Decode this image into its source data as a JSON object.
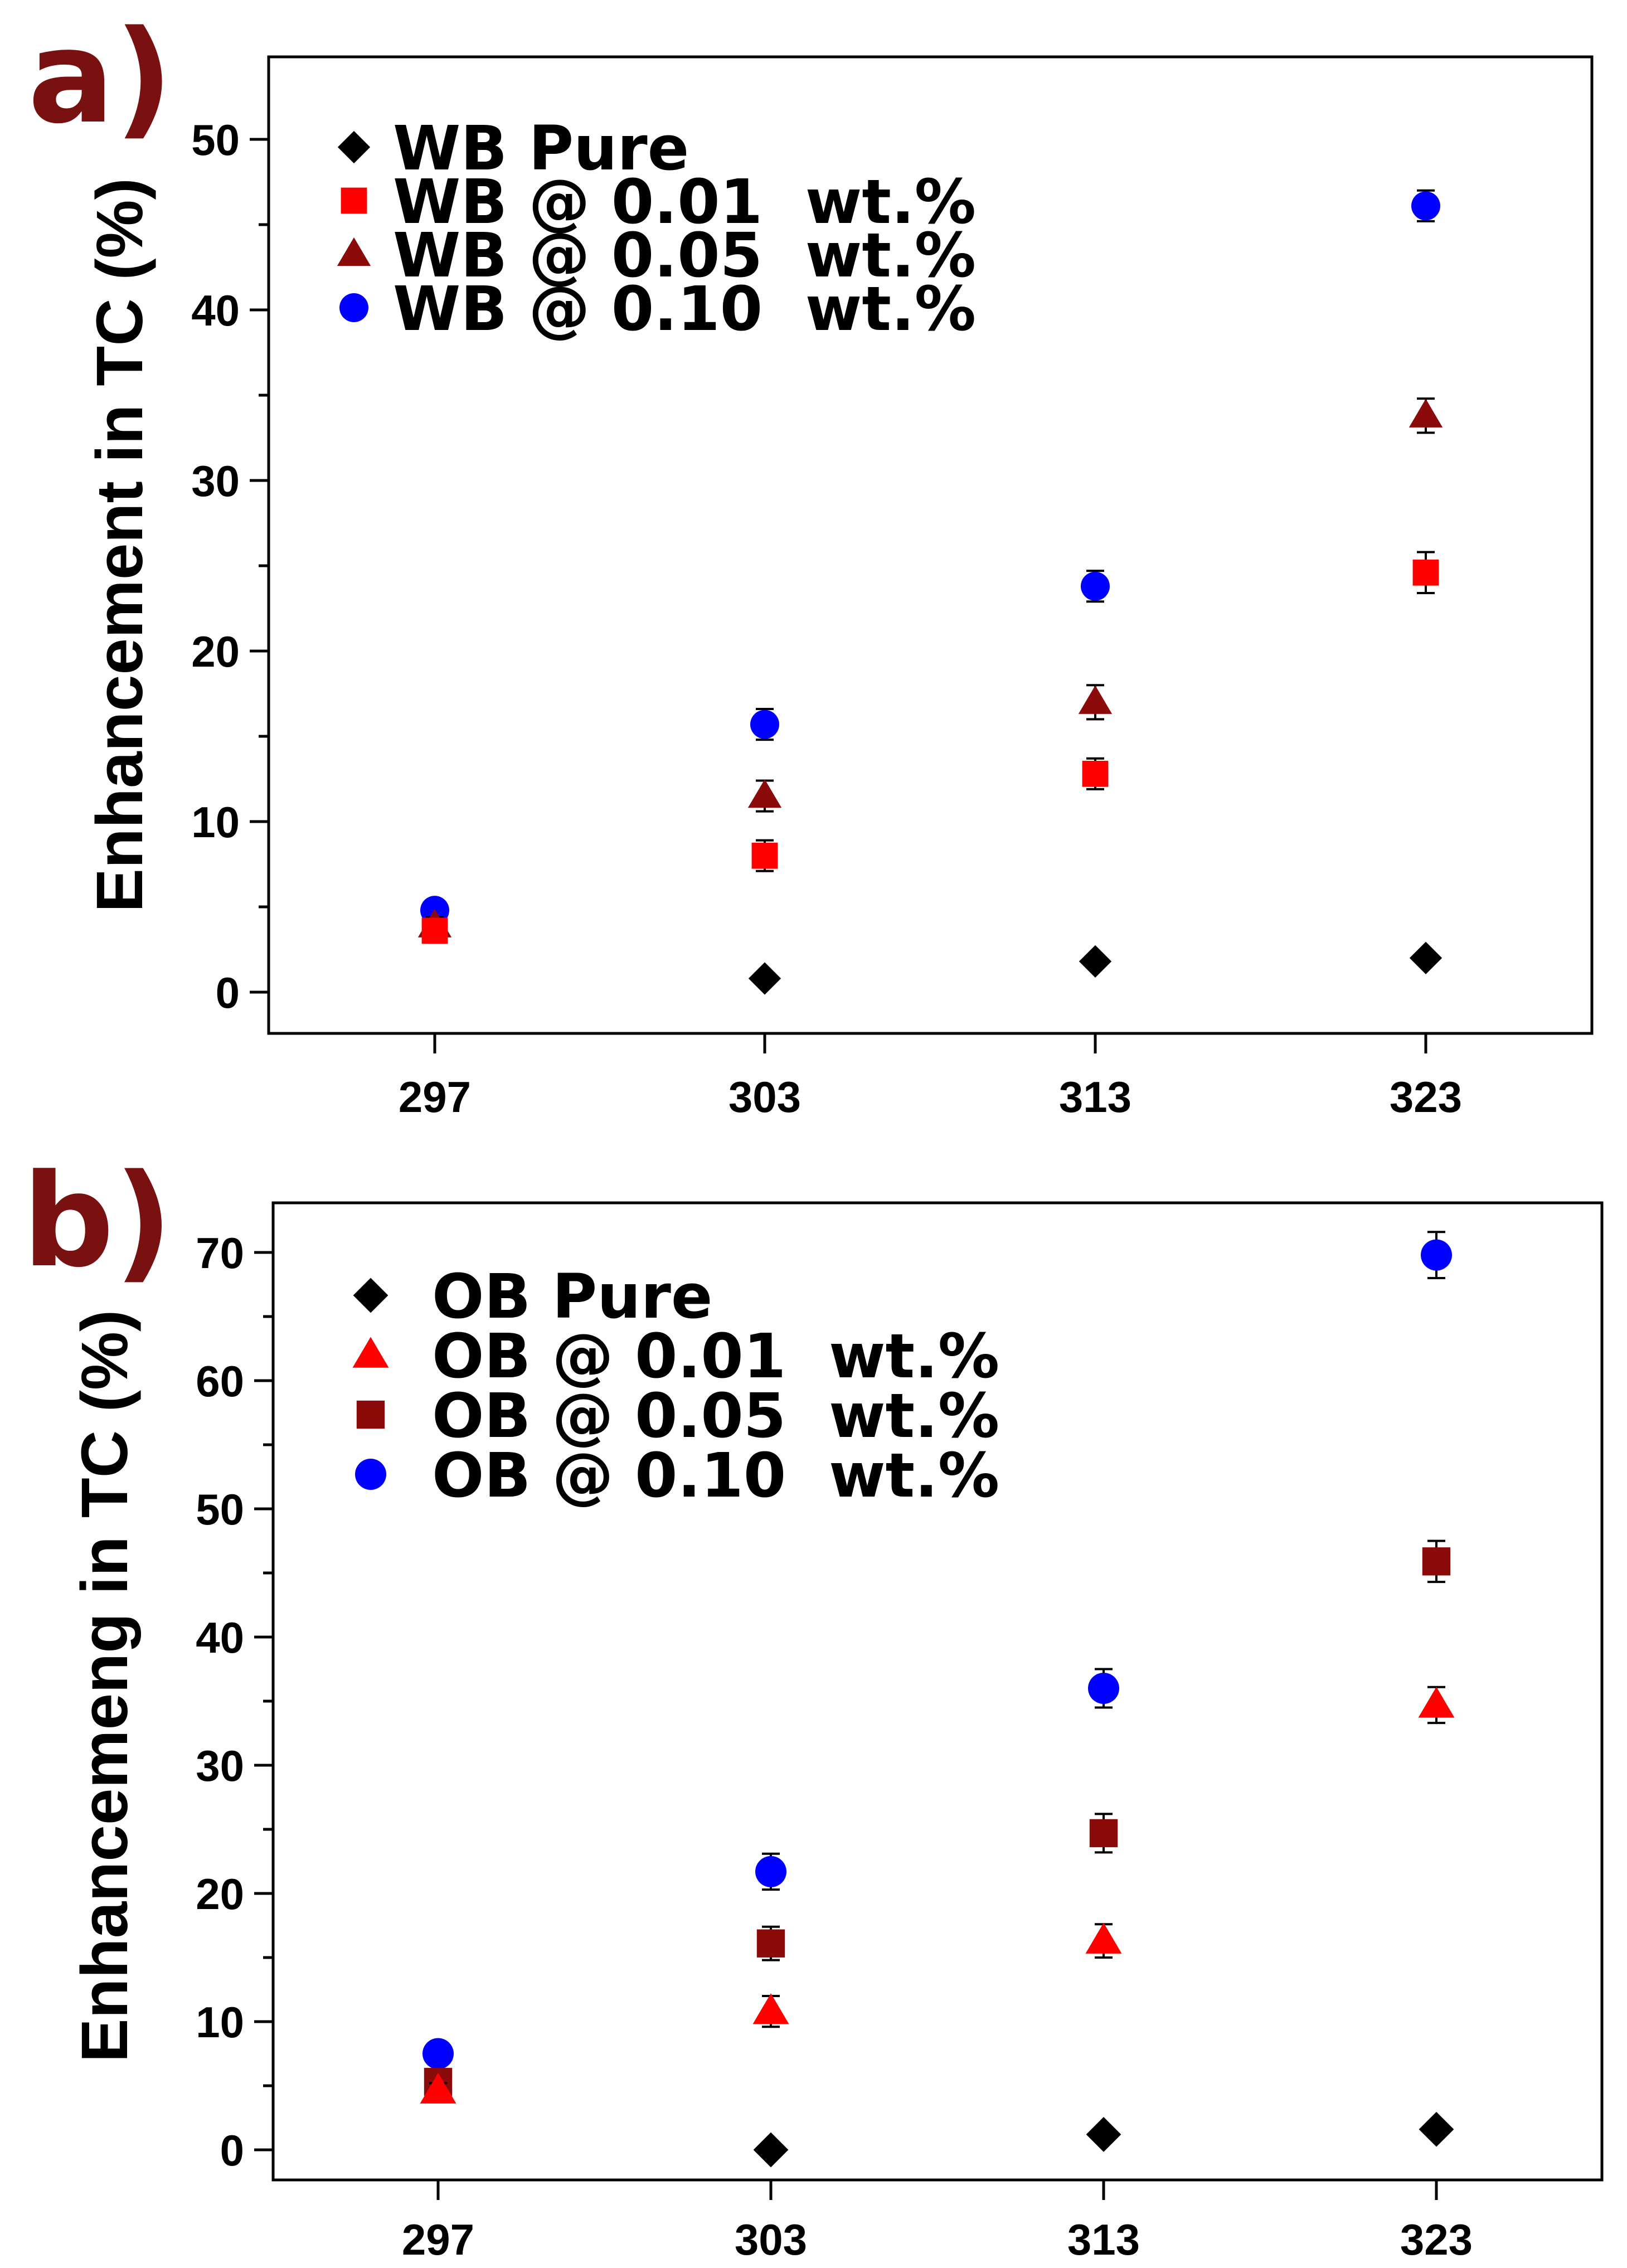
{
  "figure": {
    "panels": [
      {
        "panel_label": "a)",
        "chart_data": {
          "type": "scatter",
          "title": "",
          "xlabel": "",
          "ylabel": "Enhancement in TC (%)",
          "categories": [
            "297",
            "303",
            "313",
            "323"
          ],
          "ylim": [
            -2.5,
            55
          ],
          "yticks": [
            0,
            10,
            20,
            30,
            40,
            50
          ],
          "grid": false,
          "legend_position": "top-left",
          "series": [
            {
              "name": "WB Pure",
              "marker": "diamond",
              "color": "#000000",
              "values": [
                null,
                0.8,
                1.8,
                2.0
              ],
              "errors": [
                null,
                0.2,
                0.3,
                0.3
              ]
            },
            {
              "name": "WB @ 0.01  wt.%",
              "marker": "square",
              "color": "#ff0000",
              "values": [
                3.6,
                8.0,
                12.8,
                24.6
              ],
              "errors": [
                0.5,
                0.9,
                0.9,
                1.2
              ]
            },
            {
              "name": "WB @ 0.05  wt.%",
              "marker": "triangle",
              "color": "#8b0a0a",
              "values": [
                3.9,
                11.5,
                17.0,
                33.8
              ],
              "errors": [
                0.5,
                0.9,
                1.0,
                1.0
              ]
            },
            {
              "name": "WB @ 0.10  wt.%",
              "marker": "circle",
              "color": "#0000ff",
              "values": [
                4.8,
                15.7,
                23.8,
                46.1
              ],
              "errors": [
                0.5,
                0.9,
                0.9,
                0.9
              ]
            }
          ]
        }
      },
      {
        "panel_label": "b)",
        "chart_data": {
          "type": "scatter",
          "title": "",
          "xlabel": "",
          "ylabel": "Enhancemeng in TC (%)",
          "categories": [
            "297",
            "303",
            "313",
            "323"
          ],
          "ylim": [
            -2.5,
            75
          ],
          "yticks": [
            0,
            10,
            20,
            30,
            40,
            50,
            60,
            70
          ],
          "grid": false,
          "legend_position": "top-left",
          "series": [
            {
              "name": "OB Pure",
              "marker": "diamond",
              "color": "#000000",
              "values": [
                null,
                0.0,
                1.2,
                1.6
              ],
              "errors": [
                null,
                0.3,
                0.3,
                0.3
              ]
            },
            {
              "name": "OB @ 0.01  wt.%",
              "marker": "triangle",
              "color": "#ff0000",
              "values": [
                4.6,
                10.8,
                16.3,
                34.7
              ],
              "errors": [
                0.6,
                1.2,
                1.3,
                1.4
              ]
            },
            {
              "name": "OB @ 0.05  wt.%",
              "marker": "square",
              "color": "#8b0a0a",
              "values": [
                5.3,
                16.1,
                24.7,
                45.9
              ],
              "errors": [
                0.7,
                1.3,
                1.5,
                1.6
              ]
            },
            {
              "name": "OB @ 0.10  wt.%",
              "marker": "circle",
              "color": "#0000ff",
              "values": [
                7.5,
                21.7,
                36.0,
                69.8
              ],
              "errors": [
                0.8,
                1.4,
                1.5,
                1.8
              ]
            }
          ]
        }
      }
    ]
  }
}
